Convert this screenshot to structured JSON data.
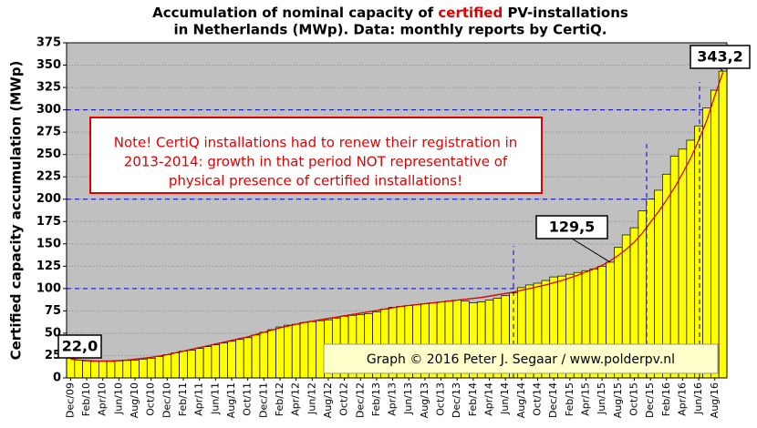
{
  "chart_data": {
    "type": "bar",
    "title_line1": [
      "Accumulation of nominal capacity of ",
      "certified",
      " PV-installations"
    ],
    "title_line2": "in Netherlands (MWp). Data: monthly reports by CertiQ.",
    "y_label": "Certified capacity accumulation (MWp)",
    "note": [
      "Note! CertiQ installations had to renew their registration in",
      "2013-2014: growth in that period NOT representative of",
      "physical presence of certified installations!"
    ],
    "credit": "Graph © 2016 Peter J. Segaar / www.polderpv.nl",
    "categories": [
      "Dec/09",
      null,
      "Feb/10",
      null,
      "Apr/10",
      null,
      "Jun/10",
      null,
      "Aug/10",
      null,
      "Oct/10",
      null,
      "Dec/10",
      null,
      "Feb/11",
      null,
      "Apr/11",
      null,
      "Jun/11",
      null,
      "Aug/11",
      null,
      "Oct/11",
      null,
      "Dec/11",
      null,
      "Feb/12",
      null,
      "Apr/12",
      null,
      "Jun/12",
      null,
      "Aug/12",
      null,
      "Oct/12",
      null,
      "Dec/12",
      null,
      "Feb/13",
      null,
      "Apr/13",
      null,
      "Jun/13",
      null,
      "Aug/13",
      null,
      "Oct/13",
      null,
      "Dec/13",
      null,
      "Feb/14",
      null,
      "Apr/14",
      null,
      "Jun/14",
      null,
      "Aug/14",
      null,
      "Oct/14",
      null,
      "Dec/14",
      null,
      "Feb/15",
      null,
      "Apr/15",
      null,
      "Jun/15",
      null,
      "Aug/15",
      null,
      "Oct/15",
      null,
      "Dec/15",
      null,
      "Feb/16",
      null,
      "Apr/16",
      null,
      "Jun/16",
      null,
      "Aug/16",
      null
    ],
    "values": [
      22.0,
      20,
      19,
      18.5,
      18.5,
      18.5,
      19,
      19.5,
      20,
      21,
      22,
      24,
      26,
      28,
      30,
      31,
      33,
      35,
      37,
      39,
      41,
      43,
      45,
      48,
      51,
      54,
      57,
      59,
      60,
      62,
      63,
      64,
      65,
      67,
      69,
      70,
      71,
      72,
      74,
      77,
      79,
      80,
      81,
      82,
      83,
      84,
      85,
      86,
      87,
      86,
      84,
      85,
      87,
      89,
      92,
      95,
      101,
      104,
      106,
      109,
      113,
      114,
      116,
      118,
      120,
      122,
      125,
      129.5,
      146,
      160,
      168,
      187,
      200,
      210,
      228,
      248,
      256,
      266,
      282,
      302,
      322,
      343.2
    ],
    "value_labels": [
      "22,0",
      null,
      null,
      null,
      null,
      null,
      null,
      null,
      null,
      null,
      null,
      null,
      null,
      null,
      null,
      null,
      null,
      null,
      null,
      null,
      null,
      null,
      null,
      null,
      null,
      null,
      null,
      null,
      null,
      null,
      null,
      null,
      null,
      null,
      null,
      null,
      null,
      null,
      null,
      null,
      null,
      null,
      null,
      null,
      null,
      null,
      null,
      null,
      null,
      null,
      null,
      null,
      null,
      null,
      null,
      null,
      null,
      null,
      null,
      null,
      null,
      null,
      null,
      null,
      null,
      null,
      null,
      "129,5",
      null,
      null,
      null,
      null,
      null,
      null,
      null,
      null,
      null,
      null,
      null,
      null,
      null,
      "343,2"
    ],
    "trend": [
      21,
      20,
      19.5,
      19,
      19,
      19,
      19.5,
      20,
      21,
      22,
      23,
      24.5,
      26,
      28,
      30,
      32,
      34,
      36,
      38,
      40,
      42,
      44,
      46,
      48.5,
      51,
      53.5,
      56,
      58,
      60,
      62,
      63.5,
      65,
      66.5,
      68,
      69.5,
      71,
      72.5,
      74,
      75.5,
      77,
      78.5,
      80,
      81,
      82,
      83,
      84,
      85,
      86,
      87,
      88,
      89,
      90,
      91.5,
      93,
      94.5,
      96,
      98,
      100,
      102,
      104,
      106.5,
      109,
      112,
      115,
      118.5,
      122,
      126,
      131,
      137,
      144,
      152,
      162,
      174,
      186,
      199,
      213,
      229,
      246,
      266,
      288,
      316,
      342
    ],
    "color": "#ffff00",
    "trend_color": "#e00000",
    "ylim": [
      0,
      375
    ],
    "yticks": [
      0,
      25,
      50,
      75,
      100,
      125,
      150,
      175,
      200,
      225,
      250,
      275,
      300,
      325,
      350,
      375
    ],
    "highlight_lines": [
      100,
      200,
      300
    ],
    "grid": true
  }
}
